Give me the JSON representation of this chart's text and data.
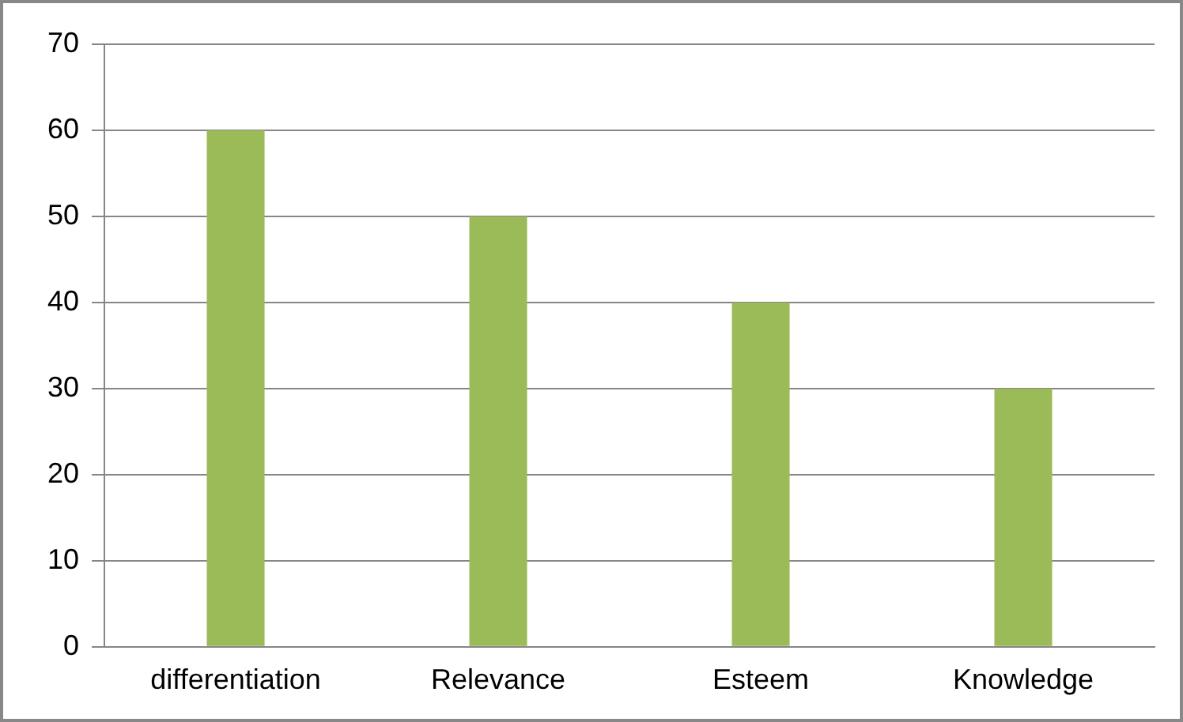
{
  "chart_data": {
    "type": "bar",
    "categories": [
      "differentiation",
      "Relevance",
      "Esteem",
      "Knowledge"
    ],
    "series": [
      {
        "color": "#9bbb59",
        "values": [
          60,
          50,
          40,
          30
        ]
      }
    ],
    "ylim": [
      0,
      70
    ],
    "yticks": [
      0,
      10,
      20,
      30,
      40,
      50,
      60,
      70
    ],
    "grid": "y",
    "legend": false
  }
}
